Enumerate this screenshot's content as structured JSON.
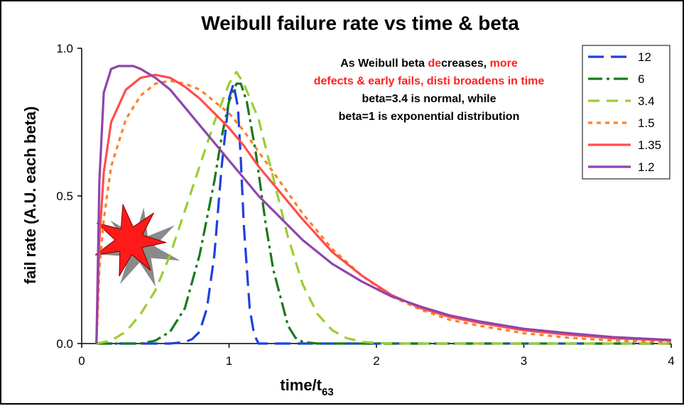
{
  "chart_data": {
    "type": "line",
    "title": "Weibull failure rate vs time & beta",
    "xlabel_main": "time/t",
    "xlabel_sub": "63",
    "ylabel": "fail rate (A.U. each beta)",
    "xlim": [
      0,
      4
    ],
    "ylim": [
      0,
      1
    ],
    "x_ticks": [
      0,
      1,
      2,
      3,
      4
    ],
    "x_tick_labels": [
      "0",
      "1",
      "2",
      "3",
      "4"
    ],
    "y_ticks": [
      0,
      0.5,
      1
    ],
    "y_tick_labels": [
      "0.0",
      "0.5",
      "1.0"
    ],
    "grid": false,
    "legend_position": "top-right",
    "annotation": {
      "line1_parts": [
        {
          "text": "As Weibull beta ",
          "color": "#000000"
        },
        {
          "text": "de",
          "color": "#ff2020"
        },
        {
          "text": "creases, ",
          "color": "#000000"
        },
        {
          "text": "more",
          "color": "#ff2020"
        }
      ],
      "line2_parts": [
        {
          "text": "defects & early fails, disti broadens in time",
          "color": "#ff2020"
        }
      ],
      "line3": "beta=3.4 is normal, while",
      "line4": "beta=1 is exponential distribution"
    },
    "series": [
      {
        "name": "12",
        "color": "#1f3fe0",
        "dash": "22 10",
        "x": [
          0.1,
          0.6,
          0.7,
          0.75,
          0.8,
          0.85,
          0.9,
          0.95,
          1.0,
          1.03,
          1.06,
          1.08,
          1.1,
          1.14,
          1.17,
          1.2,
          1.3,
          4.0
        ],
        "values": [
          0,
          0.0,
          0.005,
          0.015,
          0.04,
          0.12,
          0.3,
          0.6,
          0.83,
          0.88,
          0.8,
          0.62,
          0.4,
          0.12,
          0.03,
          0.0,
          0,
          0
        ]
      },
      {
        "name": "6",
        "color": "#1a7a1a",
        "dash": "20 6 4 6",
        "x": [
          0.1,
          0.4,
          0.5,
          0.6,
          0.7,
          0.8,
          0.9,
          0.95,
          1.0,
          1.05,
          1.08,
          1.12,
          1.18,
          1.25,
          1.3,
          1.4,
          1.45,
          1.5,
          1.6,
          4.0
        ],
        "values": [
          0,
          0.0,
          0.01,
          0.04,
          0.12,
          0.3,
          0.55,
          0.7,
          0.82,
          0.88,
          0.88,
          0.82,
          0.65,
          0.4,
          0.25,
          0.06,
          0.02,
          0.005,
          0.0,
          0
        ]
      },
      {
        "name": "3.4",
        "color": "#9acd32",
        "dash": "16 10",
        "x": [
          0.1,
          0.2,
          0.3,
          0.4,
          0.5,
          0.6,
          0.7,
          0.8,
          0.9,
          1.0,
          1.05,
          1.1,
          1.2,
          1.3,
          1.4,
          1.5,
          1.6,
          1.7,
          1.8,
          1.9,
          2.0,
          2.2,
          4.0
        ],
        "values": [
          0,
          0.01,
          0.04,
          0.1,
          0.18,
          0.3,
          0.45,
          0.6,
          0.75,
          0.88,
          0.92,
          0.88,
          0.76,
          0.56,
          0.36,
          0.2,
          0.1,
          0.045,
          0.018,
          0.006,
          0.002,
          0.0,
          0
        ]
      },
      {
        "name": "1.5",
        "color": "#ff7f27",
        "dash": "6 6",
        "x": [
          0.1,
          0.12,
          0.15,
          0.2,
          0.3,
          0.4,
          0.5,
          0.6,
          0.7,
          0.8,
          0.9,
          1.0,
          1.1,
          1.2,
          1.3,
          1.5,
          1.7,
          1.9,
          2.1,
          2.3,
          2.5,
          2.7,
          3.0,
          3.3,
          3.6,
          4.0
        ],
        "values": [
          0,
          0.25,
          0.42,
          0.6,
          0.76,
          0.84,
          0.88,
          0.89,
          0.88,
          0.86,
          0.82,
          0.78,
          0.72,
          0.65,
          0.58,
          0.44,
          0.32,
          0.23,
          0.16,
          0.115,
          0.08,
          0.06,
          0.035,
          0.02,
          0.01,
          0.005
        ]
      },
      {
        "name": "1.35",
        "color": "#ff4d4d",
        "dash": "",
        "x": [
          0.1,
          0.12,
          0.15,
          0.2,
          0.3,
          0.4,
          0.5,
          0.6,
          0.7,
          0.8,
          0.9,
          1.0,
          1.1,
          1.2,
          1.3,
          1.5,
          1.7,
          1.9,
          2.1,
          2.3,
          2.5,
          2.7,
          3.0,
          3.3,
          3.6,
          4.0
        ],
        "values": [
          0,
          0.35,
          0.58,
          0.75,
          0.86,
          0.9,
          0.91,
          0.9,
          0.87,
          0.83,
          0.78,
          0.73,
          0.67,
          0.6,
          0.54,
          0.42,
          0.31,
          0.23,
          0.165,
          0.12,
          0.09,
          0.07,
          0.045,
          0.03,
          0.018,
          0.01
        ]
      },
      {
        "name": "1.2",
        "color": "#8e44ad",
        "dash": "",
        "x": [
          0.1,
          0.12,
          0.15,
          0.2,
          0.25,
          0.3,
          0.35,
          0.4,
          0.5,
          0.6,
          0.7,
          0.8,
          0.9,
          1.0,
          1.1,
          1.2,
          1.3,
          1.5,
          1.7,
          1.9,
          2.1,
          2.3,
          2.5,
          2.7,
          3.0,
          3.3,
          3.6,
          4.0
        ],
        "values": [
          0,
          0.55,
          0.85,
          0.93,
          0.94,
          0.94,
          0.94,
          0.93,
          0.9,
          0.86,
          0.8,
          0.74,
          0.68,
          0.62,
          0.56,
          0.5,
          0.45,
          0.35,
          0.27,
          0.21,
          0.16,
          0.125,
          0.095,
          0.075,
          0.05,
          0.035,
          0.022,
          0.012
        ]
      }
    ]
  },
  "decoration": {
    "splat_front_color": "#ff1a1a",
    "splat_shadow_color": "#8a8a8a"
  }
}
